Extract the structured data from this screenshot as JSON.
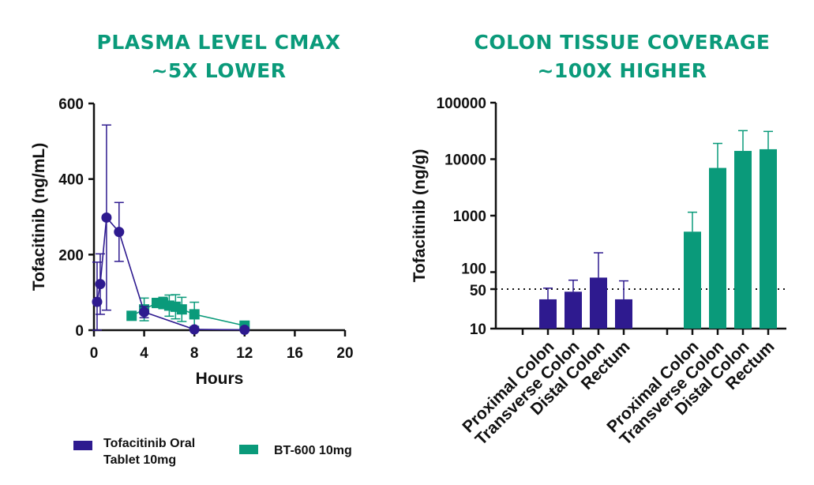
{
  "titles": {
    "left_line1": "PLASMA LEVEL CMAX",
    "left_line2": "~5X LOWER",
    "right_line1": "COLON TISSUE COVERAGE",
    "right_line2": "~100X HIGHER"
  },
  "colors": {
    "title": "#0a9a7a",
    "tofacitinib": "#2e1a8f",
    "bt600": "#0a9a7a"
  },
  "chart_data": [
    {
      "type": "line",
      "title": "PLASMA LEVEL CMAX ~5X LOWER",
      "xlabel": "Hours",
      "ylabel": "Tofacitinib (ng/mL)",
      "xlim": [
        0,
        20
      ],
      "ylim": [
        0,
        600
      ],
      "xticks": [
        0,
        4,
        8,
        12,
        16,
        20
      ],
      "yticks": [
        0,
        200,
        400,
        600
      ],
      "series": [
        {
          "name": "Tofacitinib Oral Tablet 10mg",
          "marker": "circle",
          "x": [
            0.25,
            0.5,
            1,
            2,
            4,
            8,
            12
          ],
          "y": [
            75,
            122,
            298,
            260,
            48,
            2,
            1
          ],
          "err": [
            105,
            80,
            245,
            78,
            15,
            2,
            1
          ]
        },
        {
          "name": "BT-600 10mg",
          "marker": "square",
          "x": [
            3,
            4,
            5,
            5.5,
            6,
            6.5,
            7,
            8,
            12
          ],
          "y": [
            38,
            55,
            72,
            72,
            65,
            62,
            55,
            42,
            12
          ],
          "err": [
            0,
            30,
            12,
            15,
            28,
            32,
            32,
            32,
            6
          ]
        }
      ]
    },
    {
      "type": "bar",
      "title": "COLON TISSUE COVERAGE ~100X HIGHER",
      "ylabel": "Tofacitinib (ng/g)",
      "yscale": "log",
      "ylim": [
        10,
        100000
      ],
      "yticks": [
        10,
        50,
        100,
        1000,
        10000,
        100000
      ],
      "ytick_labels": [
        "10",
        "50",
        "100",
        "1000",
        "10000",
        "100000"
      ],
      "reference_line": 50,
      "categories": [
        "Proximal Colon",
        "Transverse Colon",
        "Distal Colon",
        "Rectum"
      ],
      "series": [
        {
          "name": "Tofacitinib Oral Tablet 10mg",
          "values": [
            33,
            45,
            80,
            33
          ],
          "err_high": [
            52,
            72,
            220,
            70
          ]
        },
        {
          "name": "BT-600 10mg",
          "values": [
            520,
            7000,
            14000,
            15000
          ],
          "err_high": [
            1150,
            19000,
            32000,
            31000
          ]
        }
      ]
    }
  ],
  "legend": {
    "tofacitinib_line1": "Tofacitinib Oral",
    "tofacitinib_line2": "Tablet 10mg",
    "bt600": "BT-600 10mg"
  }
}
